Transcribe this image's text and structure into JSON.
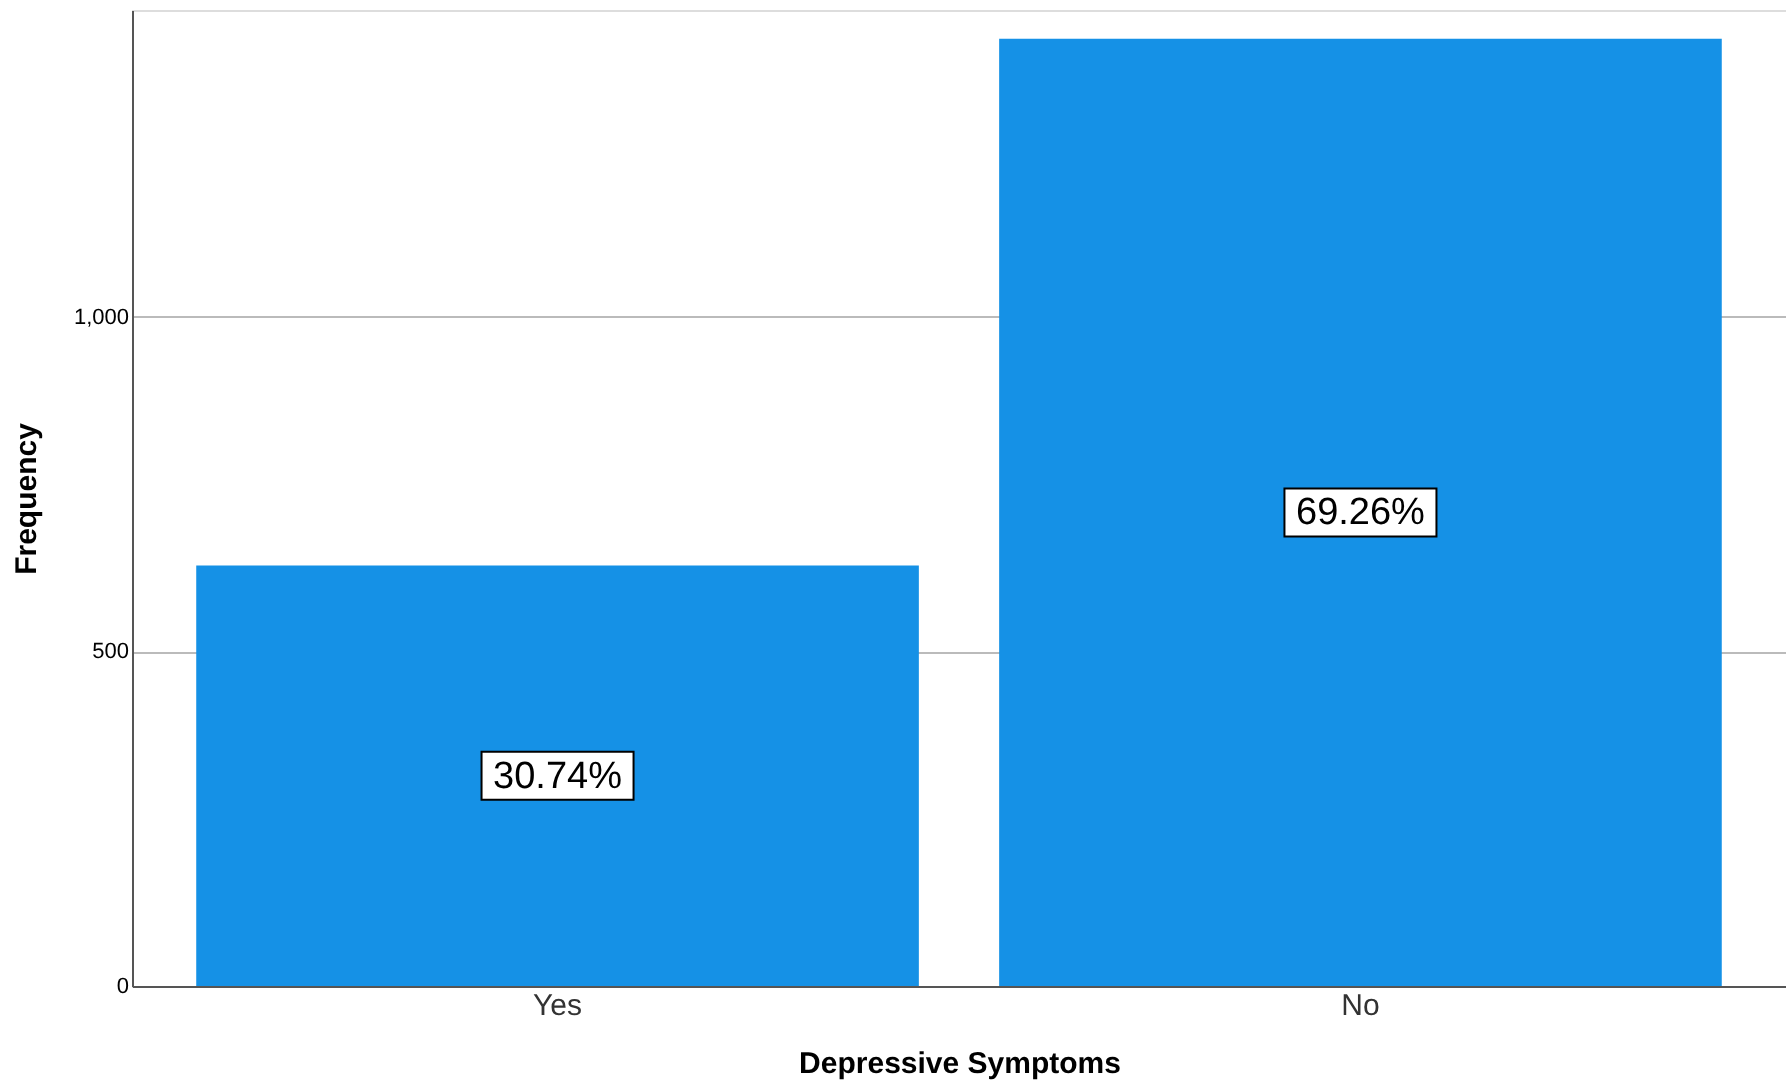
{
  "chart_data": {
    "type": "bar",
    "xlabel": "Depressive Symptoms",
    "ylabel": "Frequency",
    "categories": [
      "Yes",
      "No"
    ],
    "values": [
      628,
      1415
    ],
    "color": "#1591e6",
    "annotations": [
      "30.74%",
      "69.26%"
    ],
    "ylim": [
      0,
      1458
    ],
    "yticks": [
      0,
      {
        "value": 500,
        "label": "500"
      },
      {
        "value": 1000,
        "label": "1,000"
      }
    ],
    "grid": "y"
  }
}
